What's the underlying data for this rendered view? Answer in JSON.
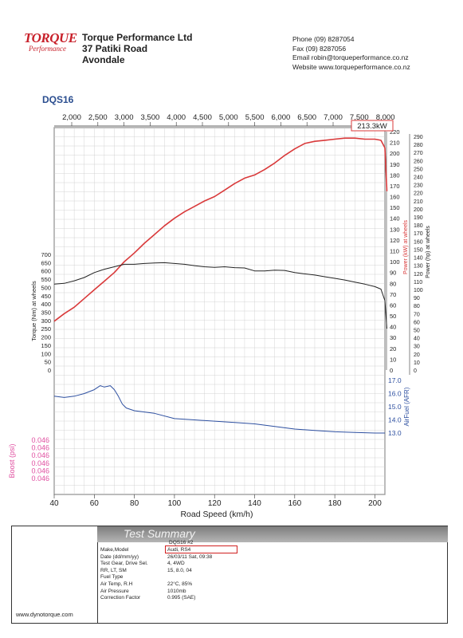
{
  "header": {
    "logo_text": "TORQUE",
    "logo_sub": "Performance",
    "company": "Torque Performance Ltd",
    "address1": "37 Patiki Road",
    "address2": "Avondale",
    "phone": "Phone (09) 8287054",
    "fax": "Fax     (09) 8287056",
    "email": "Email  robin@torqueperformance.co.nz",
    "website": "Website  www.torqueperformance.co.nz"
  },
  "sheet_id": "DQS16",
  "peak_callout": "213.3kW",
  "colors": {
    "power": "#d9393a",
    "torque": "#222222",
    "afr": "#2d4fa0",
    "boost": "#e04fa0",
    "grid": "#c9c9c9",
    "axis_blue": "#2a4d8f"
  },
  "summary": {
    "title": "Test Summary",
    "website": "www.dynotorque.com",
    "labels": [
      "Make,Model",
      "Date (dd/mm/yy)",
      "Test Gear, Drive Sel.",
      "RR, LT, SM",
      "Fuel Type",
      "Air Temp, R.H",
      "Air Pressure",
      "Correction Factor"
    ],
    "run": "DQS16   #2",
    "values": [
      "Audi, RS4",
      "26/03/11 Sat, 09:38",
      "4, 4WD",
      "15,    8.0,    04",
      "",
      "22°C,      85%",
      "1010mb",
      "0.995 (SAE)"
    ]
  },
  "chart_data": {
    "type": "line",
    "xlabel": "Road Speed (km/h)",
    "xlim": [
      40,
      205
    ],
    "x_ticks": [
      40,
      60,
      80,
      100,
      120,
      140,
      160,
      180,
      200
    ],
    "rpm_ticks": [
      "2,000",
      "2,500",
      "3,000",
      "3,500",
      "4,000",
      "4,500",
      "5,000",
      "5,500",
      "6,000",
      "6,500",
      "7,000",
      "7,500",
      "8,000"
    ],
    "series": [
      {
        "name": "Power (kW) at wheels",
        "axis": "kw",
        "color": "#d9393a",
        "x": [
          40,
          45,
          50,
          55,
          60,
          65,
          70,
          75,
          80,
          85,
          90,
          95,
          100,
          105,
          110,
          115,
          120,
          125,
          130,
          135,
          140,
          145,
          150,
          155,
          160,
          165,
          170,
          175,
          180,
          185,
          190,
          195,
          200,
          203,
          205,
          206
        ],
        "y": [
          45,
          52,
          58,
          66,
          74,
          82,
          90,
          100,
          108,
          117,
          125,
          133,
          140,
          146,
          151,
          156,
          160,
          166,
          172,
          177,
          180,
          185,
          191,
          198,
          204,
          209,
          211,
          212,
          213,
          214,
          214,
          213,
          213,
          212,
          205,
          165
        ]
      },
      {
        "name": "Torque (Nm) at wheels",
        "axis": "nm",
        "color": "#222222",
        "x": [
          40,
          45,
          50,
          55,
          60,
          65,
          70,
          75,
          80,
          85,
          90,
          95,
          100,
          105,
          110,
          115,
          120,
          125,
          130,
          135,
          140,
          145,
          150,
          155,
          160,
          165,
          170,
          175,
          180,
          185,
          190,
          195,
          200,
          203,
          205,
          206
        ],
        "y": [
          520,
          525,
          540,
          560,
          590,
          610,
          625,
          640,
          640,
          645,
          648,
          650,
          645,
          640,
          632,
          625,
          622,
          625,
          620,
          618,
          600,
          600,
          605,
          603,
          590,
          582,
          575,
          565,
          555,
          545,
          532,
          520,
          505,
          490,
          420,
          250
        ]
      },
      {
        "name": "AirFuel (AFR)",
        "axis": "afr",
        "color": "#2d4fa0",
        "x": [
          40,
          45,
          50,
          55,
          60,
          63,
          65,
          68,
          70,
          72,
          74,
          76,
          80,
          85,
          90,
          100,
          110,
          120,
          130,
          140,
          150,
          160,
          170,
          180,
          190,
          200,
          205
        ],
        "y": [
          15.8,
          15.7,
          15.8,
          16.0,
          16.3,
          16.6,
          16.5,
          16.6,
          16.3,
          15.8,
          15.2,
          14.9,
          14.7,
          14.6,
          14.5,
          14.1,
          14.0,
          13.9,
          13.8,
          13.7,
          13.5,
          13.3,
          13.2,
          13.1,
          13.05,
          13.0,
          13.0
        ]
      }
    ],
    "kw_axis": {
      "label": "Power (kW) at wheels",
      "ticks": [
        0,
        10,
        20,
        30,
        40,
        50,
        60,
        70,
        80,
        90,
        100,
        110,
        120,
        130,
        140,
        150,
        160,
        170,
        180,
        190,
        200,
        210,
        220
      ]
    },
    "hp_axis": {
      "label": "Power (hp) at wheels",
      "ticks": [
        0,
        10,
        20,
        30,
        40,
        50,
        60,
        70,
        80,
        90,
        100,
        110,
        120,
        130,
        140,
        150,
        160,
        170,
        180,
        190,
        200,
        210,
        220,
        230,
        240,
        250,
        260,
        270,
        280,
        290
      ]
    },
    "nm_axis": {
      "label": "Torque (Nm) at wheels",
      "ticks": [
        0,
        50,
        100,
        150,
        200,
        250,
        300,
        350,
        400,
        450,
        500,
        550,
        600,
        650,
        700
      ]
    },
    "afr_axis": {
      "label": "AirFuel (AFR)",
      "ticks": [
        13.0,
        14.0,
        15.0,
        16.0,
        17.0
      ]
    },
    "boost_axis": {
      "label": "Boost (psi)",
      "ticks": [
        "0.046",
        "0.046",
        "0.046",
        "0.046",
        "0.046",
        "0.046"
      ]
    }
  }
}
